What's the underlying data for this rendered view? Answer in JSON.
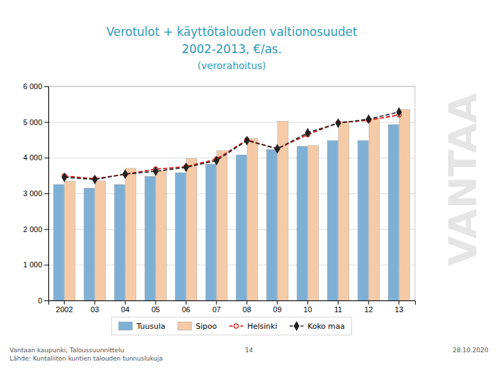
{
  "chart_data": {
    "type": "bar",
    "title": "Verotulot + käyttötalouden valtionosuudet",
    "subtitle": "2002-2013, €/as.",
    "annotations": [
      "(verorahoitus)",
      "VANTAA",
      "Vantaan kaupunki, Taloussuunnittelu",
      "Lähde: Kuntaliiton kuntien talouden tunnuslukuja",
      "14",
      "28.10.2020"
    ],
    "categories": [
      "2002",
      "03",
      "04",
      "05",
      "06",
      "07",
      "08",
      "09",
      "10",
      "11",
      "12",
      "13"
    ],
    "series": [
      {
        "name": "Tuusula",
        "type": "bar",
        "color": "#7EB0D5",
        "values": [
          3250,
          3150,
          3250,
          3480,
          3580,
          3820,
          4080,
          4230,
          4320,
          4480,
          4480,
          4930
        ]
      },
      {
        "name": "Sipoo",
        "type": "bar",
        "color": "#F5CBA7",
        "values": [
          3340,
          3350,
          3700,
          3640,
          3980,
          4200,
          4540,
          5020,
          4340,
          5020,
          5100,
          5350
        ]
      },
      {
        "name": "Helsinki",
        "type": "line",
        "color": "#CC0000",
        "marker": "circle",
        "line_style": "dashed",
        "values": [
          3490,
          3410,
          3540,
          3680,
          3750,
          3960,
          4500,
          4250,
          4650,
          4980,
          5050,
          5200
        ]
      },
      {
        "name": "Koko maa",
        "type": "line",
        "color": "#222222",
        "marker": "diamond",
        "line_style": "dashed",
        "values": [
          3450,
          3390,
          3540,
          3620,
          3730,
          3920,
          4480,
          4250,
          4700,
          4970,
          5080,
          5280
        ]
      }
    ],
    "ylim": [
      0,
      6000
    ],
    "yticks": [
      0,
      {
        "value": 1000,
        "label": "1 000"
      },
      {
        "value": 2000,
        "label": "2 000"
      },
      {
        "value": 3000,
        "label": "3 000"
      },
      {
        "value": 4000,
        "label": "4 000"
      },
      {
        "value": 5000,
        "label": "5 000"
      },
      {
        "value": 6000,
        "label": "6 000"
      }
    ],
    "grid": true,
    "legend": "bottom"
  }
}
